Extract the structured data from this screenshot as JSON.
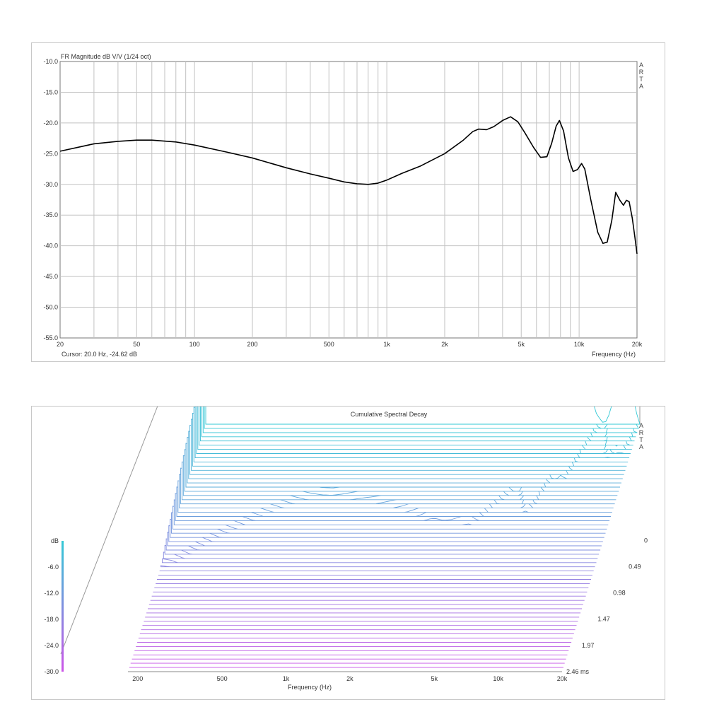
{
  "chart_data": [
    {
      "type": "line",
      "title": "FR Magnitude dB V/V (1/24 oct)",
      "xlabel": "Frequency (Hz)",
      "ylabel": "",
      "x_scale": "log",
      "xlim": [
        20,
        20000
      ],
      "ylim": [
        -55,
        -10
      ],
      "grid": true,
      "x_tick_labels": [
        {
          "v": 20,
          "t": "20"
        },
        {
          "v": 50,
          "t": "50"
        },
        {
          "v": 100,
          "t": "100"
        },
        {
          "v": 200,
          "t": "200"
        },
        {
          "v": 500,
          "t": "500"
        },
        {
          "v": 1000,
          "t": "1k"
        },
        {
          "v": 2000,
          "t": "2k"
        },
        {
          "v": 5000,
          "t": "5k"
        },
        {
          "v": 10000,
          "t": "10k"
        },
        {
          "v": 20000,
          "t": "20k"
        }
      ],
      "y_tick_labels": [
        {
          "v": -10,
          "t": "-10.0"
        },
        {
          "v": -15,
          "t": "-15.0"
        },
        {
          "v": -20,
          "t": "-20.0"
        },
        {
          "v": -25,
          "t": "-25.0"
        },
        {
          "v": -30,
          "t": "-30.0"
        },
        {
          "v": -35,
          "t": "-35.0"
        },
        {
          "v": -40,
          "t": "-40.0"
        },
        {
          "v": -45,
          "t": "-45.0"
        },
        {
          "v": -50,
          "t": "-50.0"
        },
        {
          "v": -55,
          "t": "-55.0"
        }
      ],
      "cursor_text": "Cursor: 20.0 Hz, -24.62 dB",
      "brand": [
        "A",
        "R",
        "T",
        "A"
      ],
      "series": [
        {
          "color": "#000000",
          "points": [
            [
              20,
              -24.6
            ],
            [
              30,
              -23.4
            ],
            [
              40,
              -23.0
            ],
            [
              50,
              -22.8
            ],
            [
              60,
              -22.8
            ],
            [
              80,
              -23.1
            ],
            [
              100,
              -23.6
            ],
            [
              150,
              -24.8
            ],
            [
              200,
              -25.7
            ],
            [
              300,
              -27.3
            ],
            [
              400,
              -28.3
            ],
            [
              500,
              -29.0
            ],
            [
              600,
              -29.6
            ],
            [
              700,
              -29.9
            ],
            [
              800,
              -30.0
            ],
            [
              900,
              -29.8
            ],
            [
              1000,
              -29.3
            ],
            [
              1200,
              -28.2
            ],
            [
              1500,
              -27.0
            ],
            [
              2000,
              -25.0
            ],
            [
              2500,
              -22.8
            ],
            [
              2800,
              -21.4
            ],
            [
              3000,
              -21.0
            ],
            [
              3300,
              -21.1
            ],
            [
              3600,
              -20.6
            ],
            [
              4000,
              -19.6
            ],
            [
              4400,
              -19.0
            ],
            [
              4800,
              -19.8
            ],
            [
              5200,
              -21.5
            ],
            [
              5800,
              -24.0
            ],
            [
              6300,
              -25.6
            ],
            [
              6800,
              -25.5
            ],
            [
              7200,
              -23.3
            ],
            [
              7600,
              -20.5
            ],
            [
              7900,
              -19.6
            ],
            [
              8300,
              -21.3
            ],
            [
              8800,
              -25.7
            ],
            [
              9300,
              -27.9
            ],
            [
              9800,
              -27.6
            ],
            [
              10300,
              -26.6
            ],
            [
              10700,
              -27.5
            ],
            [
              11500,
              -32.5
            ],
            [
              12500,
              -37.8
            ],
            [
              13300,
              -39.6
            ],
            [
              14000,
              -39.4
            ],
            [
              14800,
              -35.8
            ],
            [
              15500,
              -31.3
            ],
            [
              16300,
              -32.6
            ],
            [
              17000,
              -33.4
            ],
            [
              17600,
              -32.6
            ],
            [
              18200,
              -32.8
            ],
            [
              18900,
              -35.5
            ],
            [
              19500,
              -38.6
            ],
            [
              20000,
              -41.3
            ]
          ]
        }
      ]
    },
    {
      "type": "waterfall",
      "title": "Cumulative Spectral Decay",
      "xlabel": "Frequency (Hz)",
      "ylabel": "dB",
      "zlabel": "ms",
      "x_scale": "log",
      "xlim": [
        180,
        20000
      ],
      "ylim": [
        -30,
        0
      ],
      "time_lim": [
        0,
        2.46
      ],
      "x_tick_labels": [
        {
          "v": 200,
          "t": "200"
        },
        {
          "v": 500,
          "t": "500"
        },
        {
          "v": 1000,
          "t": "1k"
        },
        {
          "v": 2000,
          "t": "2k"
        },
        {
          "v": 5000,
          "t": "5k"
        },
        {
          "v": 10000,
          "t": "10k"
        },
        {
          "v": 20000,
          "t": "20k"
        }
      ],
      "y_tick_labels": [
        {
          "v": 0,
          "t": "dB"
        },
        {
          "v": -6,
          "t": "-6.0"
        },
        {
          "v": -12,
          "t": "-12.0"
        },
        {
          "v": -18,
          "t": "-18.0"
        },
        {
          "v": -24,
          "t": "-24.0"
        },
        {
          "v": -30,
          "t": "-30.0"
        }
      ],
      "time_tick_labels": [
        {
          "v": 0,
          "t": "0"
        },
        {
          "v": 0.49,
          "t": "0.49"
        },
        {
          "v": 0.98,
          "t": "0.98"
        },
        {
          "v": 1.47,
          "t": "1.47"
        },
        {
          "v": 1.97,
          "t": "1.97"
        },
        {
          "v": 2.46,
          "t": "2.46 ms"
        }
      ],
      "brand": [
        "A",
        "R",
        "T",
        "A"
      ],
      "slice_count": 60,
      "colors": {
        "front": "#33c9d6",
        "back": "#cc55e8"
      }
    }
  ]
}
